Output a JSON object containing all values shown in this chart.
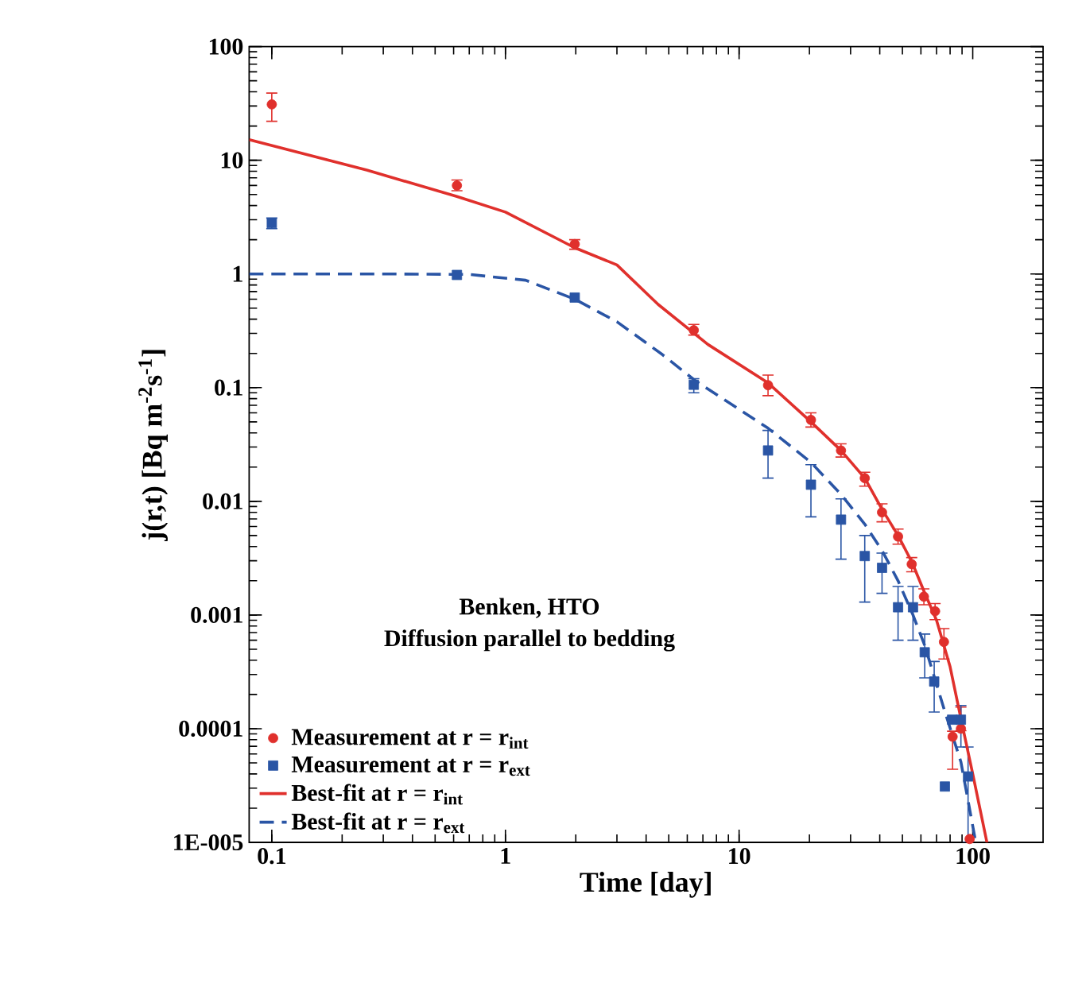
{
  "chart_data": {
    "type": "scatter",
    "xlabel": "Time [day]",
    "ylabel": "j(r,t) [Bq m$^{-2}$s$^{-1}$]",
    "legend_title": "Benken, HTO\nDiffusion parallel to bedding",
    "log": "xy",
    "legend": "bottom left",
    "xlim": [
      0.08,
      200
    ],
    "ylim": [
      1e-05,
      100
    ],
    "xticks": [
      0.1,
      1,
      10,
      100
    ],
    "yticks": [
      {
        "value": 1e-05,
        "label": "1E-005"
      },
      0.0001,
      0.001,
      0.01,
      0.1,
      1,
      10,
      100
    ],
    "series": [
      {
        "name": "Measurement at r = r$_{int}$",
        "marker": "circle",
        "color": "#e0302c",
        "x": [
          0.1,
          0.62,
          1.98,
          6.4,
          13.3,
          20.3,
          27.3,
          34.5,
          40.9,
          47.9,
          54.8,
          61.8,
          69,
          75.3,
          89,
          82,
          97
        ],
        "values": [
          31,
          6.0,
          1.83,
          0.32,
          0.105,
          0.052,
          0.028,
          0.016,
          0.008,
          0.0049,
          0.0028,
          0.00145,
          0.00108,
          0.00058,
          0.0001,
          8.5e-05,
          1.07e-05
        ],
        "errors": [
          [
            22,
            39
          ],
          [
            5.4,
            6.7
          ],
          [
            1.65,
            2.0
          ],
          [
            0.29,
            0.36
          ],
          [
            0.085,
            0.129
          ],
          [
            0.045,
            0.06
          ],
          [
            0.0245,
            0.032
          ],
          [
            0.0136,
            0.018
          ],
          [
            0.0066,
            0.0095
          ],
          [
            0.0042,
            0.0057
          ],
          [
            0.0024,
            0.0032
          ],
          [
            0.00123,
            0.0017
          ],
          [
            0.00091,
            0.00126
          ],
          [
            0.00041,
            0.00076
          ],
          [
            9.6e-05,
            0.000155
          ],
          [
            4.4e-05,
            9.5e-05
          ],
          null
        ]
      },
      {
        "name": "Measurement at r = r$_{ext}$",
        "marker": "square",
        "color": "#2a55a5",
        "x": [
          0.1,
          0.62,
          1.98,
          6.4,
          13.3,
          20.3,
          27.3,
          34.5,
          40.9,
          47.9,
          55.5,
          62.3,
          68.4,
          81.6,
          89,
          76,
          95.5
        ],
        "values": [
          2.8,
          0.98,
          0.62,
          0.106,
          0.028,
          0.014,
          0.0069,
          0.0033,
          0.0026,
          0.00117,
          0.00117,
          0.00047,
          0.00026,
          0.00012,
          0.00012,
          3.1e-05,
          3.8e-05
        ],
        "errors": [
          [
            2.5,
            3.1
          ],
          null,
          null,
          [
            0.09,
            0.12
          ],
          [
            0.016,
            0.042
          ],
          [
            0.0073,
            0.021
          ],
          [
            0.0031,
            0.0105
          ],
          [
            0.0013,
            0.005
          ],
          [
            0.00155,
            0.0035
          ],
          [
            0.0006,
            0.00178
          ],
          [
            0.0006,
            0.00178
          ],
          [
            0.00028,
            0.00068
          ],
          [
            0.00014,
            0.00039
          ],
          null,
          [
            6.9e-05,
            0.00016
          ],
          null,
          [
            1e-05,
            6.9e-05
          ]
        ]
      },
      {
        "name": "Best-fit at r = r$_{int}$",
        "type": "line",
        "line_style": "solid",
        "color": "#e0302c",
        "x": [
          0.08,
          0.255,
          0.62,
          1,
          1.98,
          3,
          4.5,
          7.35,
          13.3,
          20.3,
          27.3,
          34.5,
          40.9,
          47.9,
          55,
          62,
          70,
          80,
          90,
          100,
          115
        ],
        "values": [
          15.2,
          8.2,
          4.8,
          3.5,
          1.7,
          1.2,
          0.54,
          0.24,
          0.11,
          0.05,
          0.028,
          0.016,
          0.0085,
          0.005,
          0.0029,
          0.0016,
          0.0009,
          0.00035,
          0.00011,
          4e-05,
          1e-05
        ]
      },
      {
        "name": "Best-fit at r = r$_{ext}$",
        "type": "line",
        "line_style": "dashed",
        "color": "#2a55a5",
        "x": [
          0.08,
          0.3,
          0.7,
          1.22,
          1.98,
          3,
          4.7,
          6.5,
          13.3,
          20.3,
          27.3,
          34.5,
          40.9,
          47.9,
          55.5,
          62.3,
          75.3,
          89,
          103
        ],
        "values": [
          1.0,
          1.0,
          0.99,
          0.88,
          0.6,
          0.38,
          0.195,
          0.115,
          0.044,
          0.022,
          0.0115,
          0.0063,
          0.0037,
          0.002,
          0.001,
          0.00054,
          0.00015,
          5.1e-05,
          1e-05
        ]
      }
    ]
  }
}
